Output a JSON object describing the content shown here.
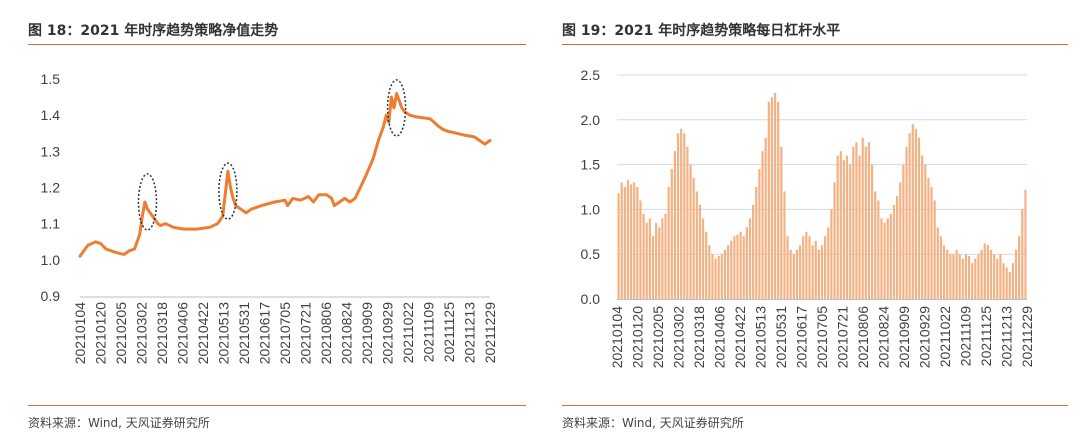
{
  "chart_data": [
    {
      "type": "line",
      "title": "图 18：2021 年时序趋势策略净值走势",
      "source": "资料来源：Wind, 天风证券研究所",
      "color": "#ed7d31",
      "ylim": [
        0.9,
        1.5
      ],
      "yticks": [
        "0.9",
        "1.0",
        "1.1",
        "1.2",
        "1.3",
        "1.4",
        "1.5"
      ],
      "xticks": [
        "20210104",
        "20210120",
        "20210205",
        "20210302",
        "20210318",
        "20210406",
        "20210422",
        "20210513",
        "20210531",
        "20210617",
        "20210705",
        "20210721",
        "20210806",
        "20210824",
        "20210909",
        "20210929",
        "20211022",
        "20211109",
        "20211125",
        "20211213",
        "20211229"
      ],
      "grid": false,
      "annotations": "dotted ellipses around three local peaks",
      "series": [
        {
          "points": [
            [
              0,
              1.01
            ],
            [
              3,
              1.04
            ],
            [
              6,
              1.05
            ],
            [
              8,
              1.045
            ],
            [
              10,
              1.03
            ],
            [
              14,
              1.02
            ],
            [
              17,
              1.015
            ],
            [
              19,
              1.025
            ],
            [
              21,
              1.03
            ],
            [
              23,
              1.07
            ],
            [
              24,
              1.12
            ],
            [
              25,
              1.16
            ],
            [
              26,
              1.14
            ],
            [
              27,
              1.13
            ],
            [
              28,
              1.12
            ],
            [
              29,
              1.11
            ],
            [
              30,
              1.1
            ],
            [
              31,
              1.095
            ],
            [
              33,
              1.1
            ],
            [
              36,
              1.09
            ],
            [
              40,
              1.085
            ],
            [
              45,
              1.085
            ],
            [
              50,
              1.09
            ],
            [
              53,
              1.1
            ],
            [
              55,
              1.12
            ],
            [
              57,
              1.245
            ],
            [
              58,
              1.2
            ],
            [
              59,
              1.17
            ],
            [
              60,
              1.15
            ],
            [
              62,
              1.14
            ],
            [
              64,
              1.13
            ],
            [
              66,
              1.14
            ],
            [
              70,
              1.15
            ],
            [
              75,
              1.16
            ],
            [
              79,
              1.165
            ],
            [
              80,
              1.15
            ],
            [
              82,
              1.17
            ],
            [
              85,
              1.165
            ],
            [
              88,
              1.175
            ],
            [
              90,
              1.16
            ],
            [
              92,
              1.18
            ],
            [
              95,
              1.18
            ],
            [
              97,
              1.17
            ],
            [
              98,
              1.15
            ],
            [
              100,
              1.16
            ],
            [
              102,
              1.17
            ],
            [
              104,
              1.16
            ],
            [
              106,
              1.17
            ],
            [
              108,
              1.2
            ],
            [
              110,
              1.23
            ],
            [
              113,
              1.28
            ],
            [
              115,
              1.33
            ],
            [
              117,
              1.37
            ],
            [
              118,
              1.4
            ],
            [
              119,
              1.38
            ],
            [
              120,
              1.45
            ],
            [
              121,
              1.42
            ],
            [
              122,
              1.46
            ],
            [
              123,
              1.44
            ],
            [
              124,
              1.42
            ],
            [
              125,
              1.41
            ],
            [
              127,
              1.4
            ],
            [
              130,
              1.395
            ],
            [
              135,
              1.39
            ],
            [
              138,
              1.37
            ],
            [
              140,
              1.36
            ],
            [
              142,
              1.355
            ],
            [
              145,
              1.35
            ],
            [
              148,
              1.345
            ],
            [
              152,
              1.34
            ],
            [
              154,
              1.33
            ],
            [
              156,
              1.32
            ],
            [
              158,
              1.33
            ]
          ]
        }
      ]
    },
    {
      "type": "bar",
      "title": "图 19：2021 年时序趋势策略每日杠杆水平",
      "source": "资料来源：Wind, 天风证券研究所",
      "color": "#f4b183",
      "ylim": [
        0.0,
        2.5
      ],
      "yticks": [
        "0.0",
        "0.5",
        "1.0",
        "1.5",
        "2.0",
        "2.5"
      ],
      "xticks": [
        "20210104",
        "20210120",
        "20210205",
        "20210302",
        "20210318",
        "20210406",
        "20210422",
        "20210513",
        "20210531",
        "20210617",
        "20210705",
        "20210721",
        "20210806",
        "20210824",
        "20210909",
        "20210929",
        "20211022",
        "20211109",
        "20211125",
        "20211213",
        "20211229"
      ],
      "grid": true,
      "series": [
        {
          "values": [
            1.18,
            1.3,
            1.25,
            1.33,
            1.28,
            1.3,
            1.25,
            1.1,
            0.95,
            0.85,
            0.9,
            0.7,
            0.85,
            0.8,
            0.9,
            0.95,
            1.25,
            1.45,
            1.65,
            1.85,
            1.9,
            1.85,
            1.7,
            1.5,
            1.35,
            1.2,
            1.05,
            0.9,
            0.75,
            0.6,
            0.5,
            0.45,
            0.48,
            0.5,
            0.55,
            0.6,
            0.65,
            0.7,
            0.72,
            0.75,
            0.7,
            0.8,
            0.9,
            1.05,
            1.25,
            1.45,
            1.65,
            1.8,
            2.2,
            2.25,
            2.3,
            2.2,
            1.7,
            1.2,
            0.7,
            0.55,
            0.5,
            0.55,
            0.6,
            0.7,
            0.75,
            0.7,
            0.6,
            0.65,
            0.55,
            0.6,
            0.7,
            0.8,
            1.0,
            1.3,
            1.6,
            1.65,
            1.55,
            1.6,
            1.5,
            1.7,
            1.75,
            1.6,
            1.8,
            1.7,
            1.75,
            1.5,
            1.2,
            1.1,
            0.9,
            0.85,
            0.9,
            0.95,
            1.05,
            1.15,
            1.3,
            1.5,
            1.7,
            1.85,
            1.95,
            1.9,
            1.8,
            1.6,
            1.5,
            1.35,
            1.25,
            1.1,
            0.8,
            0.7,
            0.6,
            0.55,
            0.5,
            0.5,
            0.55,
            0.5,
            0.45,
            0.5,
            0.48,
            0.4,
            0.45,
            0.5,
            0.55,
            0.62,
            0.6,
            0.55,
            0.5,
            0.45,
            0.5,
            0.4,
            0.35,
            0.3,
            0.4,
            0.55,
            0.7,
            1.0,
            1.22
          ]
        }
      ]
    }
  ]
}
